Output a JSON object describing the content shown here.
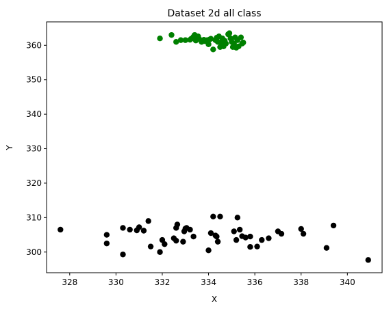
{
  "chart_data": {
    "type": "scatter",
    "title": "Dataset 2d all class",
    "xlabel": "X",
    "ylabel": "Y",
    "xlim": [
      327.0,
      341.5
    ],
    "ylim": [
      294.0,
      366.8
    ],
    "xticks": [
      328,
      330,
      332,
      334,
      336,
      338,
      340
    ],
    "yticks": [
      300,
      310,
      320,
      330,
      340,
      350,
      360
    ],
    "grid": false,
    "legend": "none",
    "series": [
      {
        "color": "#008000",
        "points": [
          [
            331.9,
            362.0
          ],
          [
            332.4,
            363.0
          ],
          [
            332.6,
            361.0
          ],
          [
            332.8,
            361.5
          ],
          [
            333.0,
            361.5
          ],
          [
            333.2,
            361.6
          ],
          [
            333.25,
            361.9
          ],
          [
            333.35,
            362.5
          ],
          [
            333.4,
            363.0
          ],
          [
            333.45,
            361.4
          ],
          [
            333.55,
            362.6
          ],
          [
            333.6,
            361.8
          ],
          [
            333.7,
            361.0
          ],
          [
            333.8,
            361.6
          ],
          [
            333.85,
            361.2
          ],
          [
            333.95,
            361.5
          ],
          [
            334.0,
            360.3
          ],
          [
            334.05,
            361.7
          ],
          [
            334.1,
            361.9
          ],
          [
            334.2,
            358.8
          ],
          [
            334.3,
            361.5
          ],
          [
            334.35,
            362.2
          ],
          [
            334.4,
            361.0
          ],
          [
            334.45,
            362.6
          ],
          [
            334.5,
            359.5
          ],
          [
            334.55,
            360.8
          ],
          [
            334.6,
            362.0
          ],
          [
            334.65,
            359.7
          ],
          [
            334.7,
            361.3
          ],
          [
            334.75,
            360.5
          ],
          [
            334.85,
            363.2
          ],
          [
            334.9,
            363.5
          ],
          [
            334.95,
            362.0
          ],
          [
            335.0,
            361.0
          ],
          [
            335.05,
            359.5
          ],
          [
            335.1,
            360.5
          ],
          [
            335.15,
            362.3
          ],
          [
            335.2,
            359.3
          ],
          [
            335.25,
            361.5
          ],
          [
            335.3,
            359.7
          ],
          [
            335.4,
            362.3
          ],
          [
            335.45,
            360.5
          ],
          [
            335.5,
            360.8
          ]
        ]
      },
      {
        "color": "#000000",
        "points": [
          [
            327.6,
            306.5
          ],
          [
            329.6,
            305.0
          ],
          [
            329.6,
            302.5
          ],
          [
            330.3,
            299.3
          ],
          [
            330.3,
            307.0
          ],
          [
            330.6,
            306.5
          ],
          [
            330.9,
            306.3
          ],
          [
            331.0,
            307.2
          ],
          [
            331.2,
            306.2
          ],
          [
            331.4,
            309.0
          ],
          [
            331.5,
            301.6
          ],
          [
            331.9,
            300.0
          ],
          [
            332.0,
            303.5
          ],
          [
            332.1,
            302.3
          ],
          [
            332.5,
            304.0
          ],
          [
            332.6,
            307.0
          ],
          [
            332.6,
            303.3
          ],
          [
            332.65,
            308.0
          ],
          [
            332.9,
            303.0
          ],
          [
            332.95,
            306.0
          ],
          [
            333.0,
            306.8
          ],
          [
            333.05,
            307.0
          ],
          [
            333.2,
            306.5
          ],
          [
            333.35,
            304.5
          ],
          [
            334.0,
            300.5
          ],
          [
            334.1,
            305.5
          ],
          [
            334.2,
            310.3
          ],
          [
            334.3,
            304.8
          ],
          [
            334.35,
            304.5
          ],
          [
            334.4,
            303.0
          ],
          [
            334.5,
            310.3
          ],
          [
            335.1,
            306.0
          ],
          [
            335.2,
            303.5
          ],
          [
            335.25,
            310.0
          ],
          [
            335.35,
            306.5
          ],
          [
            335.45,
            304.6
          ],
          [
            335.6,
            304.2
          ],
          [
            335.8,
            301.5
          ],
          [
            335.8,
            304.5
          ],
          [
            336.1,
            301.6
          ],
          [
            336.3,
            303.5
          ],
          [
            336.6,
            304.0
          ],
          [
            337.0,
            306.0
          ],
          [
            337.15,
            305.3
          ],
          [
            338.0,
            306.7
          ],
          [
            338.1,
            305.3
          ],
          [
            339.1,
            301.2
          ],
          [
            339.4,
            307.7
          ],
          [
            340.9,
            297.7
          ]
        ]
      }
    ]
  }
}
